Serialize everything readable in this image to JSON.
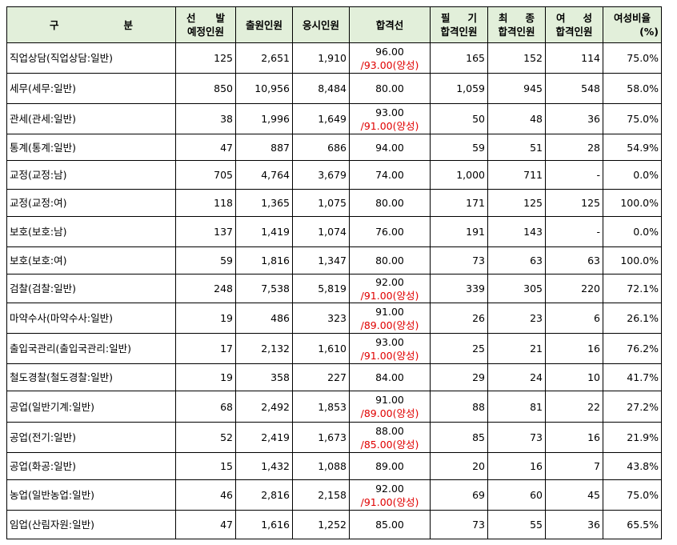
{
  "header": {
    "category": [
      "구",
      "분"
    ],
    "planned": [
      "선",
      "발",
      "예정인원"
    ],
    "applicants": "출원인원",
    "examinees": "응시인원",
    "cutoff": "합격선",
    "written_pass": [
      "필",
      "기",
      "합격인원"
    ],
    "final_pass": [
      "최",
      "종",
      "합격인원"
    ],
    "female_pass": [
      "여",
      "성",
      "합격인원"
    ],
    "female_ratio": [
      "여성비율",
      "(%)"
    ]
  },
  "rows": [
    {
      "name": "직업상담(직업상담:일반)",
      "planned": "125",
      "applicants": "2,651",
      "examinees": "1,910",
      "cutoff": "96.00",
      "cutoff_alt": "/93.00(양성)",
      "written": "165",
      "final": "152",
      "female": "114",
      "ratio": "75.0%"
    },
    {
      "name": "세무(세무:일반)",
      "planned": "850",
      "applicants": "10,956",
      "examinees": "8,484",
      "cutoff": "80.00",
      "cutoff_alt": "",
      "written": "1,059",
      "final": "945",
      "female": "548",
      "ratio": "58.0%"
    },
    {
      "name": "관세(관세:일반)",
      "planned": "38",
      "applicants": "1,996",
      "examinees": "1,649",
      "cutoff": "93.00",
      "cutoff_alt": "/91.00(양성)",
      "written": "50",
      "final": "48",
      "female": "36",
      "ratio": "75.0%"
    },
    {
      "name": "통계(통계:일반)",
      "planned": "47",
      "applicants": "887",
      "examinees": "686",
      "cutoff": "94.00",
      "cutoff_alt": "",
      "written": "59",
      "final": "51",
      "female": "28",
      "ratio": "54.9%"
    },
    {
      "name": "교정(교정:남)",
      "planned": "705",
      "applicants": "4,764",
      "examinees": "3,679",
      "cutoff": "74.00",
      "cutoff_alt": "",
      "written": "1,000",
      "final": "711",
      "female": "-",
      "ratio": "0.0%"
    },
    {
      "name": "교정(교정:여)",
      "planned": "118",
      "applicants": "1,365",
      "examinees": "1,075",
      "cutoff": "80.00",
      "cutoff_alt": "",
      "written": "171",
      "final": "125",
      "female": "125",
      "ratio": "100.0%"
    },
    {
      "name": "보호(보호:남)",
      "planned": "137",
      "applicants": "1,419",
      "examinees": "1,074",
      "cutoff": "76.00",
      "cutoff_alt": "",
      "written": "191",
      "final": "143",
      "female": "-",
      "ratio": "0.0%"
    },
    {
      "name": "보호(보호:여)",
      "planned": "59",
      "applicants": "1,816",
      "examinees": "1,347",
      "cutoff": "80.00",
      "cutoff_alt": "",
      "written": "73",
      "final": "63",
      "female": "63",
      "ratio": "100.0%"
    },
    {
      "name": "검찰(검찰:일반)",
      "planned": "248",
      "applicants": "7,538",
      "examinees": "5,819",
      "cutoff": "92.00",
      "cutoff_alt": "/91.00(양성)",
      "written": "339",
      "final": "305",
      "female": "220",
      "ratio": "72.1%"
    },
    {
      "name": "마약수사(마약수사:일반)",
      "planned": "19",
      "applicants": "486",
      "examinees": "323",
      "cutoff": "91.00",
      "cutoff_alt": "/89.00(양성)",
      "written": "26",
      "final": "23",
      "female": "6",
      "ratio": "26.1%"
    },
    {
      "name": "출입국관리(출입국관리:일반)",
      "planned": "17",
      "applicants": "2,132",
      "examinees": "1,610",
      "cutoff": "93.00",
      "cutoff_alt": "/91.00(양성)",
      "written": "25",
      "final": "21",
      "female": "16",
      "ratio": "76.2%"
    },
    {
      "name": "철도경찰(철도경찰:일반)",
      "planned": "19",
      "applicants": "358",
      "examinees": "227",
      "cutoff": "84.00",
      "cutoff_alt": "",
      "written": "29",
      "final": "24",
      "female": "10",
      "ratio": "41.7%"
    },
    {
      "name": "공업(일반기계:일반)",
      "planned": "68",
      "applicants": "2,492",
      "examinees": "1,853",
      "cutoff": "91.00",
      "cutoff_alt": "/89.00(양성)",
      "written": "88",
      "final": "81",
      "female": "22",
      "ratio": "27.2%"
    },
    {
      "name": "공업(전기:일반)",
      "planned": "52",
      "applicants": "2,419",
      "examinees": "1,673",
      "cutoff": "88.00",
      "cutoff_alt": "/85.00(양성)",
      "written": "85",
      "final": "73",
      "female": "16",
      "ratio": "21.9%"
    },
    {
      "name": "공업(화공:일반)",
      "planned": "15",
      "applicants": "1,432",
      "examinees": "1,088",
      "cutoff": "89.00",
      "cutoff_alt": "",
      "written": "20",
      "final": "16",
      "female": "7",
      "ratio": "43.8%"
    },
    {
      "name": "농업(일반농업:일반)",
      "planned": "46",
      "applicants": "2,816",
      "examinees": "2,158",
      "cutoff": "92.00",
      "cutoff_alt": "/91.00(양성)",
      "written": "69",
      "final": "60",
      "female": "45",
      "ratio": "75.0%"
    },
    {
      "name": "임업(산림자원:일반)",
      "planned": "47",
      "applicants": "1,616",
      "examinees": "1,252",
      "cutoff": "85.00",
      "cutoff_alt": "",
      "written": "73",
      "final": "55",
      "female": "36",
      "ratio": "65.5%"
    }
  ],
  "colors": {
    "header_bg": "#e2efda",
    "alt_cutoff": "#e00000",
    "border": "#000000"
  }
}
